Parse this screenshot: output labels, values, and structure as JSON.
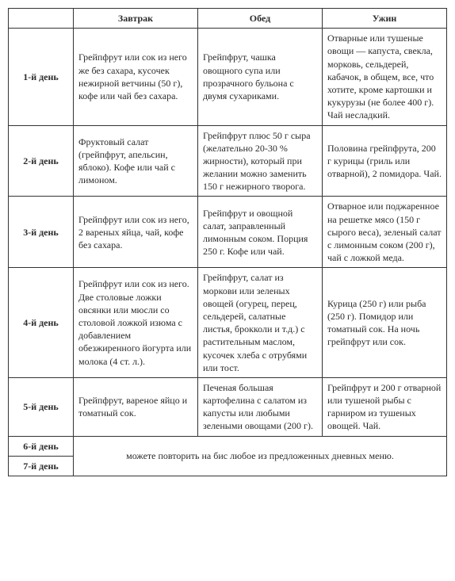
{
  "headers": {
    "breakfast": "Завтрак",
    "lunch": "Обед",
    "dinner": "Ужин"
  },
  "days": [
    {
      "label": "1-й день",
      "breakfast": "Грейпфрут или сок из него же без сахара, кусочек нежирной ветчины (50 г), кофе или чай без сахара.",
      "lunch": "Грейпфрут, чашка овощного супа или прозрачного бульона с двумя сухариками.",
      "dinner": "Отварные или тушеные овощи — капуста, свекла, морковь, сельдерей, кабачок, в общем, все, что хотите, кроме картошки и кукурузы (не более 400 г). Чай несладкий."
    },
    {
      "label": "2-й день",
      "breakfast": "Фруктовый салат (грейпфрут, апельсин, яблоко). Кофе или чай с лимоном.",
      "lunch": "Грейпфрут плюс 50 г сыра (желательно 20-30 % жирности), который при желании можно заменить 150 г нежирного творога.",
      "dinner": "Половина грейпфрута, 200 г курицы (гриль или отварной), 2 помидора. Чай."
    },
    {
      "label": "3-й день",
      "breakfast": "Грейпфрут или сок из него, 2 вареных яйца, чай, кофе без сахара.",
      "lunch": "Грейпфрут и овощной салат, заправленный лимонным соком. Порция 250 г. Кофе или чай.",
      "dinner": "Отварное или поджаренное на решетке мясо (150 г сырого веса), зеленый салат с лимонным соком (200 г), чай с ложкой меда."
    },
    {
      "label": "4-й день",
      "breakfast": "Грейпфрут или сок из него. Две столовые ложки овсянки или мюсли со столовой ложкой изюма с добавлением обезжиренного йогурта или молока (4 ст. л.).",
      "lunch": "Грейпфрут, салат из моркови или зеленых овощей (огурец, перец, сельдерей, салатные листья, брокколи и т.д.) с растительным маслом, кусочек хлеба с отрубями или тост.",
      "dinner": "Курица (250 г) или рыба (250 г). Помидор или томатный сок. На ночь грейпфрут или сок."
    },
    {
      "label": "5-й день",
      "breakfast": "Грейпфрут, вареное яйцо и томатный сок.",
      "lunch": "Печеная большая картофелина с салатом из капусты или любыми зелеными овощами (200 г).",
      "dinner": "Грейпфрут и 200 г отварной или тушеной рыбы с гарниром из тушеных овощей. Чай."
    }
  ],
  "repeat": {
    "day6": "6-й день",
    "day7": "7-й день",
    "text": "можете повторить на бис любое из предложенных дневных меню."
  }
}
